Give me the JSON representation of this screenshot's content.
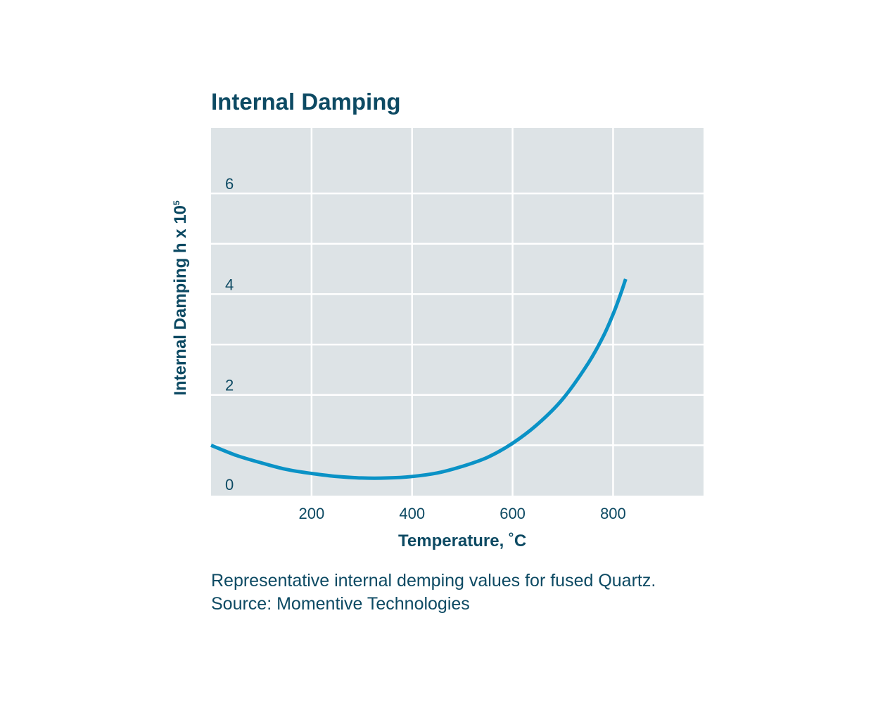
{
  "chart_data": {
    "type": "line",
    "title": "Internal Damping",
    "xlabel": "Temperature, ˚C",
    "ylabel": "Internal Damping h x 10",
    "ylabel_exponent": "5",
    "x_ticks": [
      "200",
      "400",
      "600",
      "800"
    ],
    "x_tick_values": [
      200,
      400,
      600,
      800
    ],
    "y_ticks": [
      "0",
      "2",
      "4",
      "6"
    ],
    "y_tick_values": [
      0,
      2,
      4,
      6
    ],
    "xlim": [
      0,
      980
    ],
    "ylim": [
      0,
      7.3
    ],
    "grid": true,
    "colors": {
      "background": "#dde3e6",
      "grid": "#ffffff",
      "line": "#0a92c6",
      "text": "#0d4a63"
    },
    "series": [
      {
        "x": [
          0,
          50,
          100,
          150,
          200,
          250,
          300,
          350,
          400,
          450,
          500,
          550,
          600,
          650,
          700,
          750,
          780,
          800,
          815,
          825
        ],
        "y": [
          1.0,
          0.8,
          0.65,
          0.52,
          0.44,
          0.38,
          0.35,
          0.35,
          0.38,
          0.45,
          0.58,
          0.76,
          1.04,
          1.42,
          1.92,
          2.62,
          3.15,
          3.6,
          4.0,
          4.3
        ]
      }
    ]
  },
  "caption": {
    "line1": "Representative internal demping values for fused Quartz.",
    "line2": "Source: Momentive Technologies"
  }
}
